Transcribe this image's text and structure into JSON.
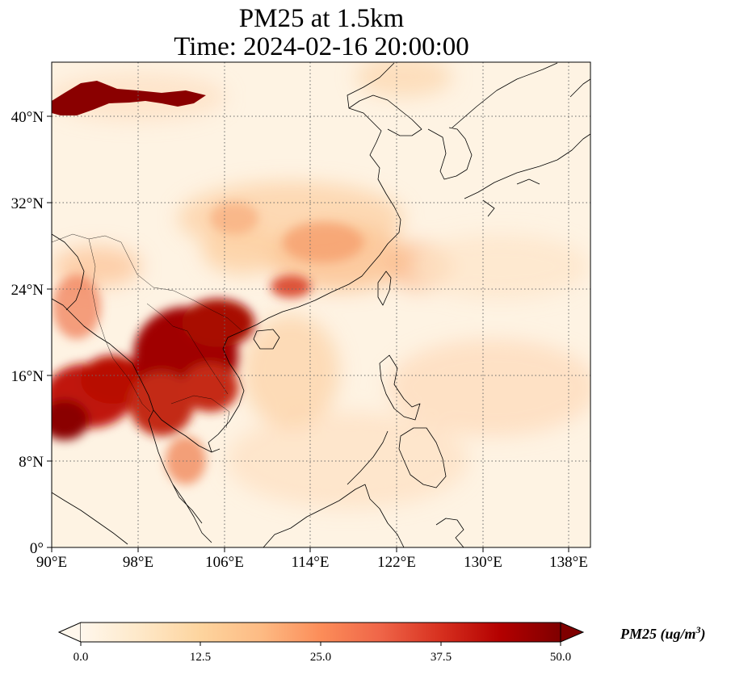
{
  "title": {
    "line1": "PM25 at 1.5km",
    "line2": "Time: 2024-02-16 20:00:00"
  },
  "map": {
    "projection": "PlateCarree",
    "lon_range": [
      90,
      140
    ],
    "lat_range": [
      0,
      45
    ],
    "x_ticks": [
      "90°E",
      "98°E",
      "106°E",
      "114°E",
      "122°E",
      "130°E",
      "138°E"
    ],
    "x_tick_values": [
      90,
      98,
      106,
      114,
      122,
      130,
      138
    ],
    "y_ticks": [
      "0°",
      "8°N",
      "16°N",
      "24°N",
      "32°N",
      "40°N"
    ],
    "y_tick_values": [
      0,
      8,
      16,
      24,
      32,
      40
    ],
    "gridlines": "dotted gray",
    "coastlines": "black"
  },
  "colorbar": {
    "label_main": "PM25 (ug/m",
    "label_sup": "3",
    "label_close": ")",
    "ticks": [
      "0.0",
      "12.5",
      "25.0",
      "37.5",
      "50.0"
    ],
    "vmin": 0,
    "vmax": 50,
    "colormap": "OrRd",
    "extend": "both",
    "colors": [
      "#fff7ec",
      "#fee8c8",
      "#fdd49e",
      "#fdbb84",
      "#fc8d59",
      "#ef6548",
      "#d7301f",
      "#b30000",
      "#7f0000"
    ]
  }
}
